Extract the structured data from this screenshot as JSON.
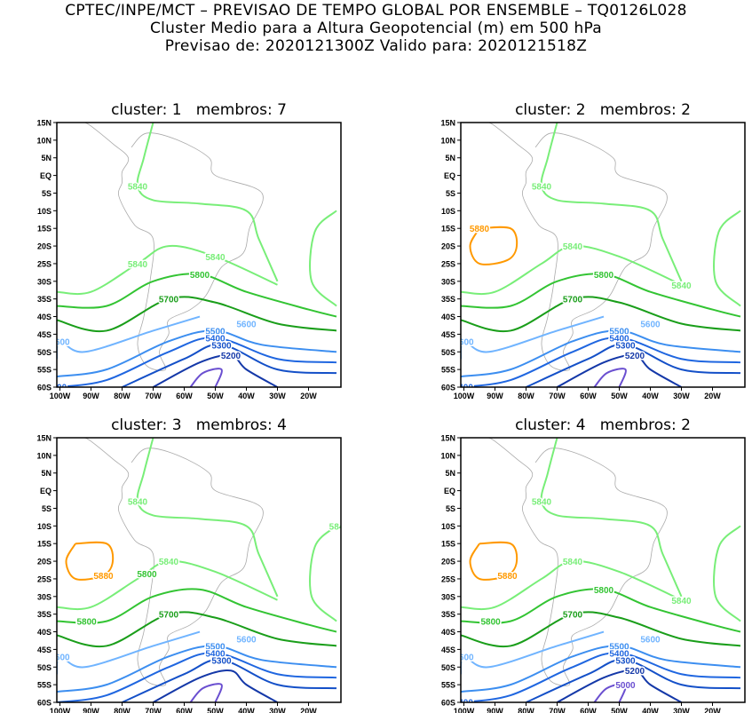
{
  "header": {
    "line1": "CPTEC/INPE/MCT – PREVISAO DE TEMPO GLOBAL POR ENSEMBLE – TQ0126L028",
    "line2": "Cluster Medio para a Altura Geopotencial (m) em 500 hPa",
    "line3": "Previsao de: 2020121300Z    Valido para: 2020121518Z"
  },
  "axes": {
    "lat_ticks": [
      "15N",
      "10N",
      "5N",
      "EQ",
      "5S",
      "10S",
      "15S",
      "20S",
      "25S",
      "30S",
      "35S",
      "40S",
      "45S",
      "50S",
      "55S",
      "60S"
    ],
    "lon_ticks": [
      "100W",
      "90W",
      "80W",
      "70W",
      "60W",
      "50W",
      "40W",
      "30W",
      "20W"
    ]
  },
  "colors": {
    "5880": "#ff9900",
    "5840": "#78ee78",
    "5800": "#33c433",
    "5700": "#1a9e1a",
    "5600": "#70b4ff",
    "5500": "#3c8ef0",
    "5400": "#1f66e0",
    "5300": "#1450c8",
    "5200": "#1438a8",
    "5100": "#6a4fd0",
    "5000": "#6a4fd0"
  },
  "panels": [
    {
      "title": "cluster: 1   membros: 7",
      "labels": [
        "5840",
        "5840",
        "5840",
        "5800",
        "5700",
        "5600",
        "5600",
        "5500",
        "5400",
        "5300",
        "5200",
        "400"
      ]
    },
    {
      "title": "cluster: 2   membros: 2",
      "labels": [
        "5840",
        "5840",
        "5840",
        "5800",
        "5700",
        "5600",
        "5600",
        "5500",
        "5400",
        "5300",
        "5200",
        "5400",
        "5880"
      ]
    },
    {
      "title": "cluster: 3   membros: 4",
      "labels": [
        "5840",
        "5840",
        "584",
        "5800",
        "5700",
        "5600",
        "5600",
        "5500",
        "5400",
        "5300",
        "5800",
        "5880"
      ]
    },
    {
      "title": "cluster: 4   membros: 2",
      "labels": [
        "5840",
        "5840",
        "5840",
        "5800",
        "5700",
        "5600",
        "5600",
        "5500",
        "5400",
        "5300",
        "5200",
        "5800",
        "5880",
        "5000",
        "5400"
      ]
    }
  ]
}
